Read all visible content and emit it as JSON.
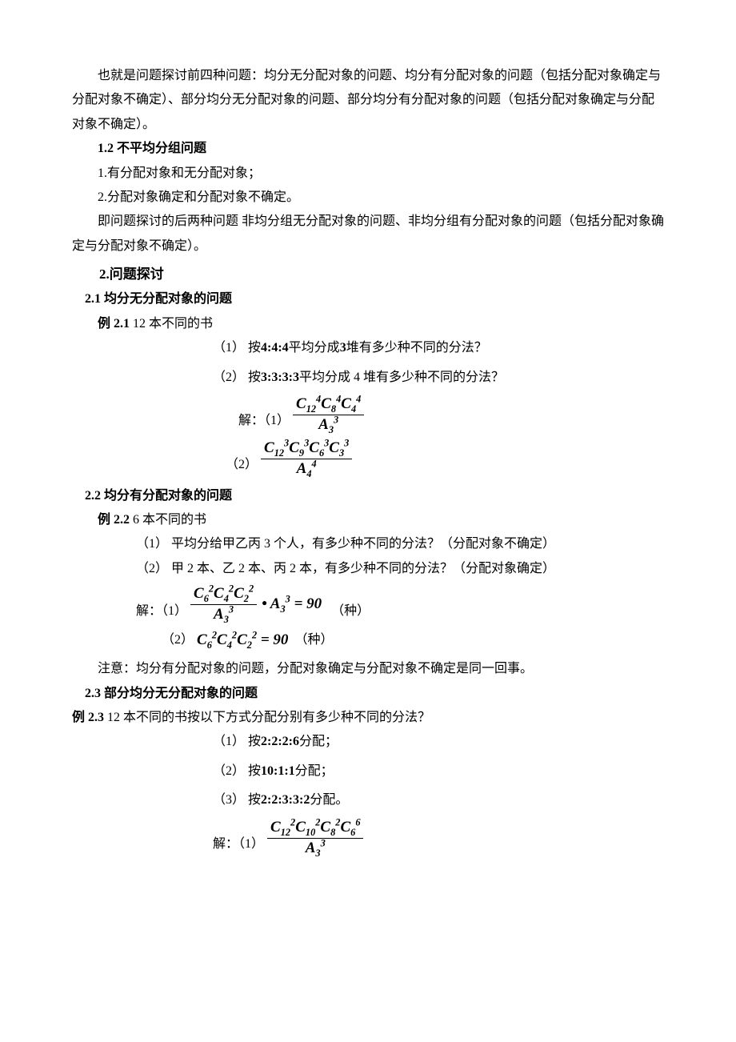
{
  "intro": {
    "p1": "也就是问题探讨前四种问题：均分无分配对象的问题、均分有分配对象的问题（包括分配对象确定与分配对象不确定）、部分均分无分配对象的问题、部分均分有分配对象的问题（包括分配对象确定与分配对象不确定）。",
    "h12": "1.2 不平均分组问题",
    "li1": "1.有分配对象和无分配对象；",
    "li2": "2.分配对象确定和分配对象不确定。",
    "p2": "即问题探讨的后两种问题 非均分组无分配对象的问题、非均分组有分配对象的问题（包括分配对象确定与分配对象不确定）。"
  },
  "s2": {
    "h": "2.问题探讨",
    "s21": {
      "h": "2.1 均分无分配对象的问题",
      "ex_label": "例 2.1",
      "ex_text": " 12 本不同的书",
      "q1_pre": "（1） 按",
      "q1_ratio": "4:4:4",
      "q1_mid": "平均分成",
      "q1_n": "3",
      "q1_post": "堆有多少种不同的分法？",
      "q2_pre": "（2） 按",
      "q2_ratio": "3:3:3:3",
      "q2_post": "平均分成 4 堆有多少种不同的分法？",
      "sol_label": "解：（1）",
      "sol1_top": "C<sub>12</sub><sup>4</sup>C<sub>8</sub><sup>4</sup>C<sub>4</sub><sup>4</sup>",
      "sol1_bot": "A<sub>3</sub><sup>3</sup>",
      "sol2_label": "（2）",
      "sol2_top": "C<sub>12</sub><sup>3</sup>C<sub>9</sub><sup>3</sup>C<sub>6</sub><sup>3</sup>C<sub>3</sub><sup>3</sup>",
      "sol2_bot": "A<sub>4</sub><sup>4</sup>"
    },
    "s22": {
      "h": "2.2 均分有分配对象的问题",
      "ex_label": "例 2.2",
      "ex_text": " 6 本不同的书",
      "q1": "（1） 平均分给甲乙丙 3 个人，有多少种不同的分法？（分配对象不确定）",
      "q2": "（2） 甲 2 本、乙 2 本、丙 2 本，有多少种不同的分法？（分配对象确定）",
      "sol_label": "解：（1）",
      "sol1_top": "C<sub>6</sub><sup>2</sup>C<sub>4</sub><sup>2</sup>C<sub>2</sub><sup>2</sup>",
      "sol1_bot": "A<sub>3</sub><sup>3</sup>",
      "sol1_mult": "• A<sub>3</sub><sup>3</sup> = 90",
      "sol1_unit": "（种）",
      "sol2_label": "（2）",
      "sol2_expr": "C<sub>6</sub><sup>2</sup>C<sub>4</sub><sup>2</sup>C<sub>2</sub><sup>2</sup> = 90",
      "sol2_unit": "（种）",
      "note": "注意：均分有分配对象的问题，分配对象确定与分配对象不确定是同一回事。"
    },
    "s23": {
      "h": "2.3 部分均分无分配对象的问题",
      "ex_label": "例 2.3",
      "ex_text": " 12 本不同的书按以下方式分配分别有多少种不同的分法？",
      "q1_pre": "（1） 按",
      "q1_ratio": "2:2:2:6",
      "q1_post": "分配；",
      "q2_pre": "（2） 按",
      "q2_ratio": "10:1:1",
      "q2_post": "分配；",
      "q3_pre": "（3） 按",
      "q3_ratio": "2:2:3:3:2",
      "q3_post": "分配。",
      "sol_label": "解：（1）",
      "sol1_top": "C<sub>12</sub><sup>2</sup>C<sub>10</sub><sup>2</sup>C<sub>8</sub><sup>2</sup>C<sub>6</sub><sup>6</sup>",
      "sol1_bot": "A<sub>3</sub><sup>3</sup>"
    }
  }
}
